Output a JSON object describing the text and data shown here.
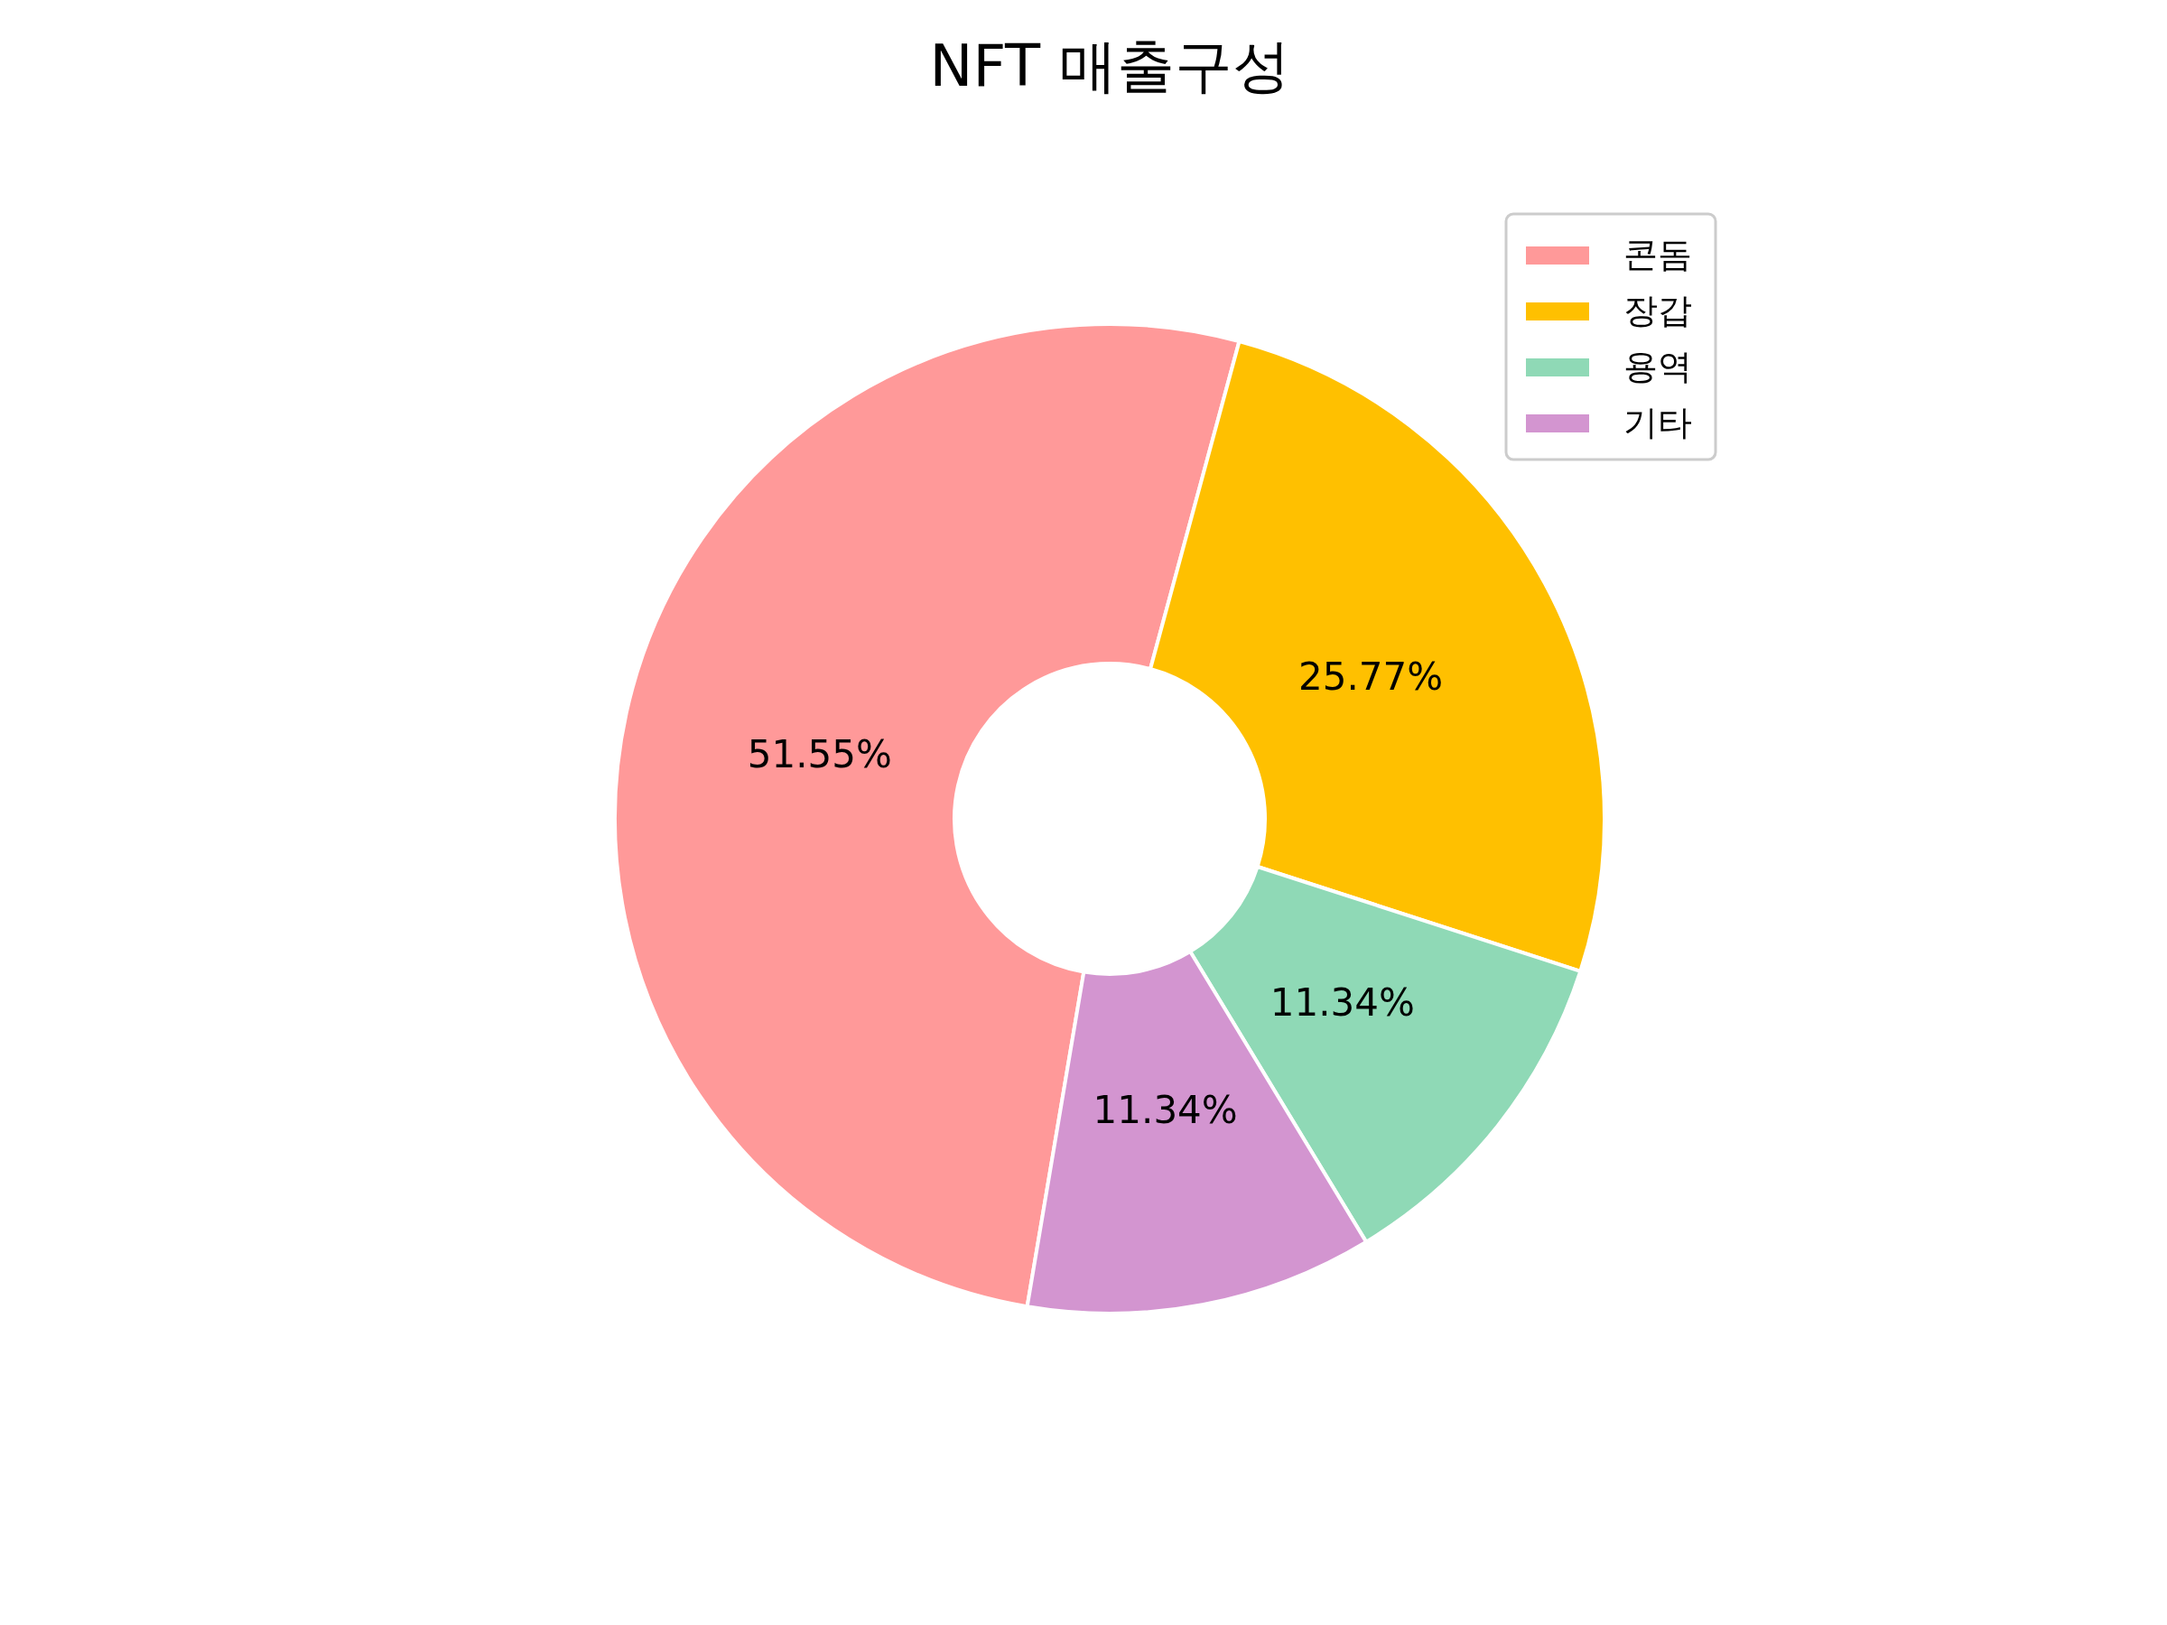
{
  "chart_data": {
    "type": "donut",
    "title": "NFT 매출구성",
    "categories": [
      "콘돔",
      "장갑",
      "용역",
      "기타"
    ],
    "values": [
      51.55,
      25.77,
      11.34,
      11.34
    ],
    "colors": [
      "#ff9999",
      "#ffc000",
      "#8fd9b6",
      "#d395d0"
    ],
    "value_labels": [
      "51.55%",
      "25.77%",
      "11.34%",
      "11.34%"
    ],
    "legend": "top right"
  }
}
